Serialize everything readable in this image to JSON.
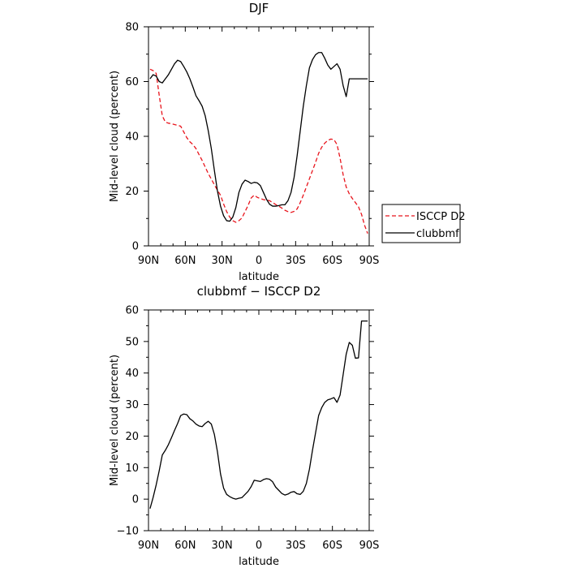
{
  "chart_data": [
    {
      "type": "line",
      "title": "DJF",
      "xlabel": "latitude",
      "ylabel": "Mid-level cloud (percent)",
      "xlim": [
        -90,
        90
      ],
      "ylim": [
        0,
        80
      ],
      "xticks": [
        -90,
        -60,
        -30,
        0,
        30,
        60,
        90
      ],
      "xtick_labels": [
        "90N",
        "60N",
        "30N",
        "0",
        "30S",
        "60S",
        "90S"
      ],
      "yticks": [
        0,
        20,
        40,
        60,
        80
      ],
      "ytick_labels": [
        "0",
        "20",
        "40",
        "60",
        "80"
      ],
      "legend": "outside-right",
      "series": [
        {
          "name": "ISCCP D2",
          "color": "#e8141c",
          "dash": "dashed",
          "x": [
            -88.75,
            -86.25,
            -83.75,
            -81.25,
            -78.75,
            -76.25,
            -73.75,
            -71.25,
            -68.75,
            -66.25,
            -63.75,
            -61.25,
            -58.75,
            -56.25,
            -53.75,
            -51.25,
            -48.75,
            -46.25,
            -43.75,
            -41.25,
            -38.75,
            -36.25,
            -33.75,
            -31.25,
            -28.75,
            -26.25,
            -23.75,
            -21.25,
            -18.75,
            -16.25,
            -13.75,
            -11.25,
            -8.75,
            -6.25,
            -3.75,
            -1.25,
            1.25,
            3.75,
            6.25,
            8.75,
            11.25,
            13.75,
            16.25,
            18.75,
            21.25,
            23.75,
            26.25,
            28.75,
            31.25,
            33.75,
            36.25,
            38.75,
            41.25,
            43.75,
            46.25,
            48.75,
            51.25,
            53.75,
            56.25,
            58.75,
            61.25,
            63.75,
            66.25,
            68.75,
            71.25,
            73.75,
            76.25,
            78.75,
            81.25,
            83.75,
            86.25,
            88.75
          ],
          "y": [
            64.5,
            64.0,
            63.0,
            55.0,
            47.5,
            45.2,
            44.8,
            44.6,
            44.3,
            44.0,
            43.7,
            41.6,
            39.5,
            38.0,
            37.0,
            35.5,
            33.3,
            31.2,
            28.8,
            26.4,
            24.4,
            22.3,
            20.3,
            18.5,
            15.3,
            12.5,
            10.5,
            9.2,
            8.6,
            9.2,
            10.2,
            12.5,
            14.8,
            17.5,
            18.5,
            17.7,
            17.3,
            16.9,
            16.7,
            16.5,
            15.8,
            15.1,
            14.5,
            13.8,
            13.0,
            12.5,
            12.2,
            12.6,
            13.5,
            15.8,
            18.5,
            21.5,
            24.5,
            27.5,
            30.5,
            33.8,
            36.0,
            37.5,
            38.5,
            39.0,
            38.8,
            37.0,
            32.0,
            26.0,
            21.5,
            19.0,
            17.3,
            15.8,
            14.3,
            11.5,
            7.5,
            4.5
          ]
        },
        {
          "name": "clubbmf",
          "color": "#000000",
          "dash": "solid",
          "x": [
            -88.75,
            -86.25,
            -83.75,
            -81.25,
            -78.75,
            -76.25,
            -73.75,
            -71.25,
            -68.75,
            -66.25,
            -63.75,
            -61.25,
            -58.75,
            -56.25,
            -53.75,
            -51.25,
            -48.75,
            -46.25,
            -43.75,
            -41.25,
            -38.75,
            -36.25,
            -33.75,
            -31.25,
            -28.75,
            -26.25,
            -23.75,
            -21.25,
            -18.75,
            -16.25,
            -13.75,
            -11.25,
            -8.75,
            -6.25,
            -3.75,
            -1.25,
            1.25,
            3.75,
            6.25,
            8.75,
            11.25,
            13.75,
            16.25,
            18.75,
            21.25,
            23.75,
            26.25,
            28.75,
            31.25,
            33.75,
            36.25,
            38.75,
            41.25,
            43.75,
            46.25,
            48.75,
            51.25,
            53.75,
            56.25,
            58.75,
            61.25,
            63.75,
            66.25,
            68.75,
            71.25,
            73.75,
            76.25,
            78.75,
            81.25,
            83.75,
            86.25,
            88.75
          ],
          "y": [
            61.0,
            62.5,
            62.0,
            60.0,
            59.5,
            61.0,
            62.5,
            64.5,
            66.5,
            67.8,
            67.3,
            65.5,
            63.5,
            61.0,
            58.0,
            54.8,
            53.0,
            51.0,
            47.5,
            42.0,
            35.5,
            27.5,
            20.0,
            14.5,
            11.0,
            9.2,
            9.0,
            10.5,
            14.0,
            19.5,
            22.5,
            24.0,
            23.5,
            22.8,
            23.2,
            23.0,
            22.0,
            19.5,
            17.0,
            15.2,
            14.5,
            14.5,
            14.7,
            15.0,
            15.0,
            16.5,
            19.5,
            25.0,
            33.0,
            42.0,
            51.0,
            58.5,
            65.0,
            68.0,
            69.8,
            70.6,
            70.6,
            68.5,
            66.0,
            64.5,
            65.5,
            66.5,
            64.5,
            58.5,
            54.5,
            61.0,
            61.0,
            61.0,
            61.0,
            61.0,
            61.0,
            61.0
          ]
        }
      ]
    },
    {
      "type": "line",
      "title": "clubbmf − ISCCP D2",
      "xlabel": "latitude",
      "ylabel": "Mid-level cloud (percent)",
      "xlim": [
        -90,
        90
      ],
      "ylim": [
        -10,
        60
      ],
      "xticks": [
        -90,
        -60,
        -30,
        0,
        30,
        60,
        90
      ],
      "xtick_labels": [
        "90N",
        "60N",
        "30N",
        "0",
        "30S",
        "60S",
        "90S"
      ],
      "yticks": [
        -10,
        0,
        10,
        20,
        30,
        40,
        50,
        60
      ],
      "ytick_labels": [
        "−10",
        "0",
        "10",
        "20",
        "30",
        "40",
        "50",
        "60"
      ],
      "series": [
        {
          "color": "#000000",
          "dash": "solid",
          "x": [
            -88.75,
            -86.25,
            -83.75,
            -81.25,
            -78.75,
            -76.25,
            -73.75,
            -71.25,
            -68.75,
            -66.25,
            -63.75,
            -61.25,
            -58.75,
            -56.25,
            -53.75,
            -51.25,
            -48.75,
            -46.25,
            -43.75,
            -41.25,
            -38.75,
            -36.25,
            -33.75,
            -31.25,
            -28.75,
            -26.25,
            -23.75,
            -21.25,
            -18.75,
            -16.25,
            -13.75,
            -11.25,
            -8.75,
            -6.25,
            -3.75,
            -1.25,
            1.25,
            3.75,
            6.25,
            8.75,
            11.25,
            13.75,
            16.25,
            18.75,
            21.25,
            23.75,
            26.25,
            28.75,
            31.25,
            33.75,
            36.25,
            38.75,
            41.25,
            43.75,
            46.25,
            48.75,
            51.25,
            53.75,
            56.25,
            58.75,
            61.25,
            63.75,
            66.25,
            68.75,
            71.25,
            73.75,
            76.25,
            78.75,
            81.25,
            83.75,
            86.25,
            88.75
          ],
          "y": [
            -3.0,
            0.5,
            4.5,
            9.0,
            14.0,
            15.5,
            17.3,
            19.5,
            21.8,
            24.0,
            26.5,
            27.0,
            26.8,
            25.5,
            24.8,
            23.8,
            23.2,
            23.0,
            24.0,
            24.7,
            23.8,
            20.5,
            15.0,
            8.0,
            3.5,
            1.5,
            0.8,
            0.3,
            0.0,
            0.3,
            0.5,
            1.5,
            2.5,
            4.0,
            6.0,
            5.8,
            5.6,
            6.2,
            6.5,
            6.3,
            5.5,
            3.8,
            2.8,
            1.8,
            1.3,
            1.6,
            2.2,
            2.4,
            1.7,
            1.5,
            2.5,
            5.0,
            9.5,
            15.5,
            21.0,
            26.5,
            29.0,
            30.7,
            31.5,
            31.8,
            32.2,
            30.7,
            33.0,
            39.5,
            46.0,
            49.7,
            48.8,
            44.7,
            44.8,
            56.5,
            56.5,
            56.5
          ]
        }
      ]
    }
  ]
}
